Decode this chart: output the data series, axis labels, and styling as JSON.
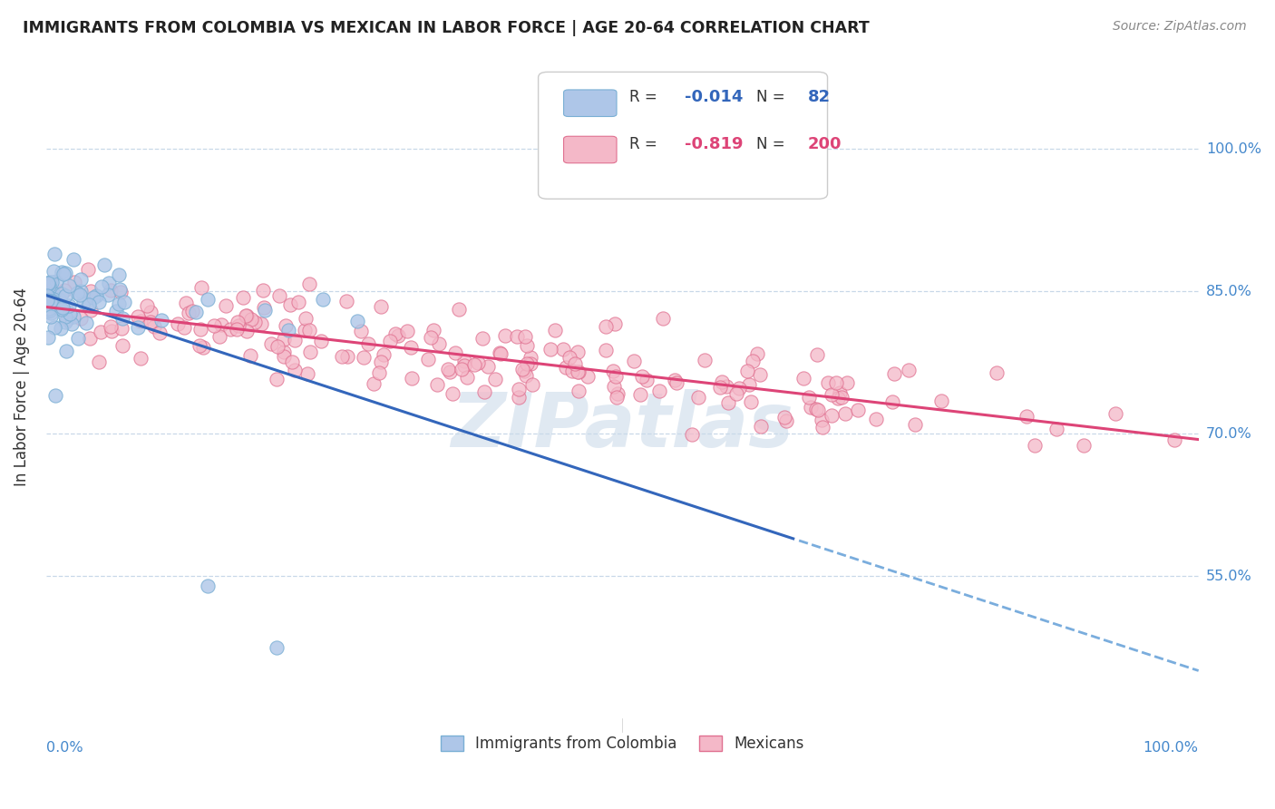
{
  "title": "IMMIGRANTS FROM COLOMBIA VS MEXICAN IN LABOR FORCE | AGE 20-64 CORRELATION CHART",
  "source": "Source: ZipAtlas.com",
  "ylabel": "In Labor Force | Age 20-64",
  "xlim": [
    0.0,
    1.0
  ],
  "ylim": [
    0.4,
    1.1
  ],
  "ytick_labels": [
    "55.0%",
    "70.0%",
    "85.0%",
    "100.0%"
  ],
  "ytick_values": [
    0.55,
    0.7,
    0.85,
    1.0
  ],
  "colombia_color": "#aec6e8",
  "colombia_edge_color": "#7aafd4",
  "mexican_color": "#f4b8c8",
  "mexican_edge_color": "#e07090",
  "trend_colombia_solid_color": "#3366bb",
  "trend_colombia_dashed_color": "#7aaddd",
  "trend_mexican_color": "#dd4477",
  "watermark_color": "#c8d8e8",
  "R_colombia": -0.014,
  "N_colombia": 82,
  "R_mexican": -0.819,
  "N_mexican": 200,
  "background_color": "#ffffff",
  "grid_color": "#c8d8e8",
  "title_color": "#222222",
  "source_color": "#888888",
  "axis_label_color": "#333333",
  "tick_color": "#4488cc",
  "legend_edge_color": "#cccccc",
  "colombia_seed": 42,
  "mexican_seed": 7
}
